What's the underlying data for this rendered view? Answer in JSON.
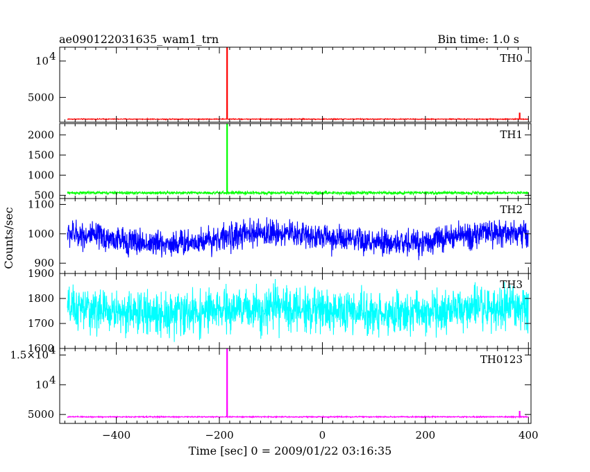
{
  "header": {
    "title": "ae090122031635_wam1_trn",
    "bin_time": "Bin time: 1.0 s"
  },
  "chart_data": {
    "type": "line",
    "xlabel": "Time [sec] 0 = 2009/01/22 03:16:35",
    "ylabel": "Counts/sec",
    "xlim": [
      -510,
      405
    ],
    "x_ticks": [
      {
        "value": -400,
        "label": "−400"
      },
      {
        "value": -200,
        "label": "−200"
      },
      {
        "value": 0,
        "label": "0"
      },
      {
        "value": 200,
        "label": "200"
      },
      {
        "value": 400,
        "label": "400"
      }
    ],
    "panels": [
      {
        "name": "TH0",
        "color": "#ff0000",
        "ylim": [
          1600,
          11900
        ],
        "y_ticks": [
          {
            "value": 5000,
            "label": "5000"
          },
          {
            "value": 10000,
            "label": "10",
            "exp": "4"
          }
        ],
        "signal": {
          "x_start": -495,
          "x_end": 400,
          "baseline": 2020,
          "noise": 100,
          "slow_amp": 0
        },
        "features": [
          {
            "x": -185,
            "y": 11900
          },
          {
            "x": 383,
            "y": 2900
          }
        ]
      },
      {
        "name": "TH1",
        "color": "#00ff00",
        "ylim": [
          420,
          2280
        ],
        "y_ticks": [
          {
            "value": 500,
            "label": "500"
          },
          {
            "value": 1000,
            "label": "1000"
          },
          {
            "value": 1500,
            "label": "1500"
          },
          {
            "value": 2000,
            "label": "2000"
          }
        ],
        "signal": {
          "x_start": -495,
          "x_end": 400,
          "baseline": 560,
          "noise": 60,
          "slow_amp": 0
        },
        "features": [
          {
            "x": -185,
            "y": 2280
          }
        ]
      },
      {
        "name": "TH2",
        "color": "#0000ff",
        "ylim": [
          865,
          1120
        ],
        "y_ticks": [
          {
            "value": 900,
            "label": "900"
          },
          {
            "value": 1000,
            "label": "1000"
          },
          {
            "value": 1100,
            "label": "1100"
          }
        ],
        "signal": {
          "x_start": -495,
          "x_end": 400,
          "baseline": 985,
          "noise": 75,
          "slow_amp": 18
        },
        "features": []
      },
      {
        "name": "TH3",
        "color": "#00ffff",
        "ylim": [
          1600,
          1900
        ],
        "y_ticks": [
          {
            "value": 1600,
            "label": "1600"
          },
          {
            "value": 1700,
            "label": "1700"
          },
          {
            "value": 1800,
            "label": "1800"
          },
          {
            "value": 1900,
            "label": "1900"
          }
        ],
        "signal": {
          "x_start": -495,
          "x_end": 400,
          "baseline": 1750,
          "noise": 140,
          "slow_amp": 10
        },
        "features": []
      },
      {
        "name": "TH0123",
        "color": "#ff00ff",
        "ylim": [
          3500,
          16100
        ],
        "y_ticks": [
          {
            "value": 5000,
            "label": "5000"
          },
          {
            "value": 10000,
            "label": "10",
            "exp": "4"
          },
          {
            "value": 15000,
            "label": "1.5×10",
            "exp": "4"
          }
        ],
        "signal": {
          "x_start": -495,
          "x_end": 400,
          "baseline": 4600,
          "noise": 150,
          "slow_amp": 0
        },
        "features": [
          {
            "x": -185,
            "y": 16100
          },
          {
            "x": 383,
            "y": 5600
          }
        ]
      }
    ]
  }
}
